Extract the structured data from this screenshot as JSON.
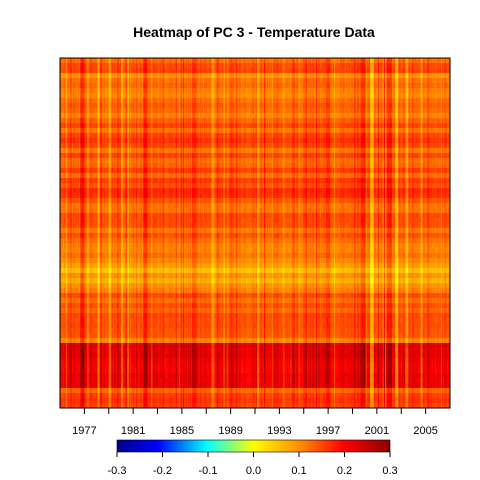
{
  "chart_data": {
    "type": "heatmap",
    "title": "Heatmap of PC 3  - Temperature Data",
    "xlabel": "",
    "ylabel": "",
    "x_start_year": 1975,
    "x_end_year": 2007,
    "x_ticks": [
      1977,
      1981,
      1985,
      1989,
      1993,
      1997,
      2001,
      2005
    ],
    "x_tick_labels": [
      "1977",
      "1981",
      "1985",
      "1989",
      "1993",
      "1997",
      "2001",
      "2005"
    ],
    "x_minor_ticks": [
      1979,
      1983,
      1987,
      1991,
      1995,
      1999,
      2003
    ],
    "colorbar": {
      "min": -0.3,
      "max": 0.3,
      "ticks": [
        -0.3,
        -0.2,
        -0.1,
        0.0,
        0.1,
        0.2,
        0.3
      ],
      "tick_labels": [
        "-0.3",
        "-0.2",
        "-0.1",
        "0.0",
        "0.1",
        "0.2",
        "0.3"
      ],
      "colors": [
        "#00008b",
        "#0000ff",
        "#00ffff",
        "#ffff00",
        "#ff8c00",
        "#ff0000",
        "#8b0000"
      ]
    },
    "rows": 70,
    "legend": "bottom",
    "grid": false,
    "value_description": "approximate cell values: 0.1-0.25 mostly (yellow-orange), about 0.2-0.25 (red) in rows 57-65 counted from top"
  }
}
